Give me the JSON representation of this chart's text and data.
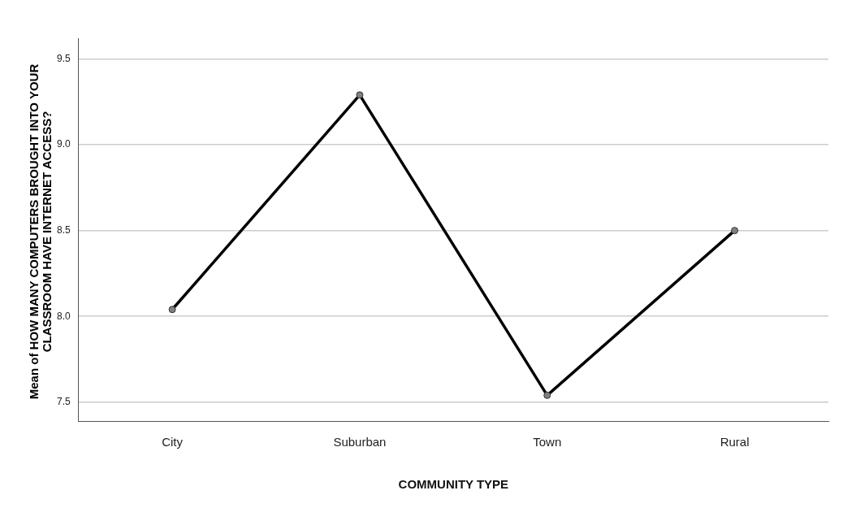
{
  "chart_data": {
    "type": "line",
    "xlabel": "COMMUNITY TYPE",
    "ylabel": "Mean of HOW MANY COMPUTERS BROUGHT INTO YOUR CLASSROOM HAVE INTERNET ACCESS?",
    "categories": [
      "City",
      "Suburban",
      "Town",
      "Rural"
    ],
    "series": [
      {
        "color": "#000000",
        "values": [
          8.04,
          9.29,
          7.54,
          8.5
        ]
      }
    ],
    "ylim": [
      7.39,
      9.62
    ],
    "yticks": [
      {
        "value": 7.5,
        "label": "7.5"
      },
      {
        "value": 8,
        "label": "8.0"
      },
      {
        "value": 8.5,
        "label": "8.5"
      },
      {
        "value": 9,
        "label": "9.0"
      },
      {
        "value": 9.5,
        "label": "9.5"
      }
    ],
    "grid": "y",
    "legend": false,
    "marker": "circle",
    "line_style": "solid"
  }
}
